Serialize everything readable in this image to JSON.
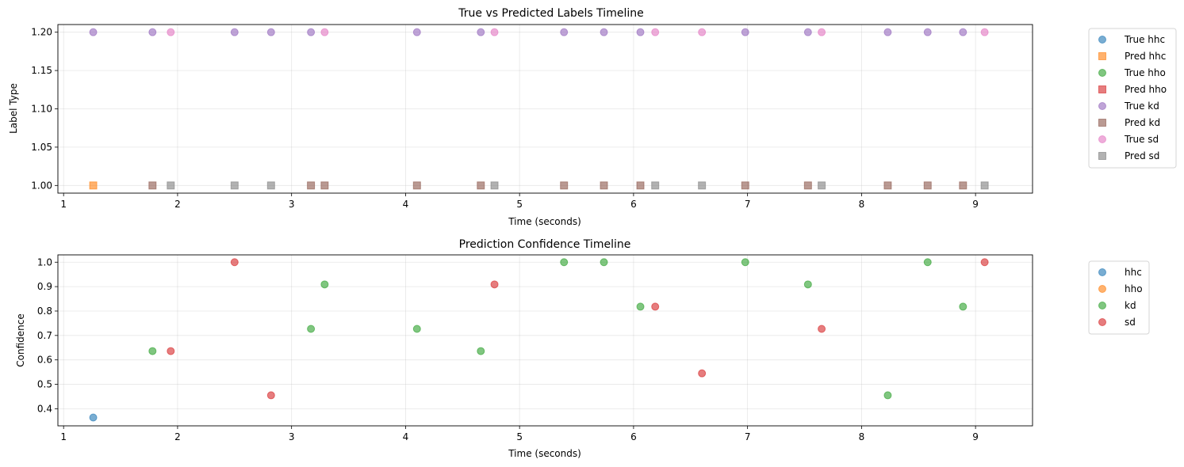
{
  "chart_data": [
    {
      "type": "scatter",
      "title": "True vs Predicted Labels Timeline",
      "xlabel": "Time (seconds)",
      "ylabel": "Label Type",
      "xlim": [
        0.95,
        9.5
      ],
      "ylim": [
        0.99,
        1.21
      ],
      "xticks": [
        1,
        2,
        3,
        4,
        5,
        6,
        7,
        8,
        9
      ],
      "yticks": [
        1.0,
        1.05,
        1.1,
        1.15,
        1.2
      ],
      "ytick_labels": [
        "1.00",
        "1.05",
        "1.10",
        "1.15",
        "1.20"
      ],
      "grid": true,
      "legend_placement": "outside-upper-right",
      "series": [
        {
          "name": "True hhc",
          "marker": "circle",
          "color": "#1f77b4",
          "x": [],
          "y": []
        },
        {
          "name": "Pred hhc",
          "marker": "square",
          "color": "#ff7f0e",
          "x": [
            1.26
          ],
          "y": [
            1.0
          ]
        },
        {
          "name": "True hho",
          "marker": "circle",
          "color": "#2ca02c",
          "x": [],
          "y": []
        },
        {
          "name": "Pred hho",
          "marker": "square",
          "color": "#d62728",
          "x": [],
          "y": []
        },
        {
          "name": "True kd",
          "marker": "circle",
          "color": "#9467bd",
          "x": [
            1.26,
            1.78,
            2.5,
            2.82,
            3.17,
            4.1,
            4.66,
            5.39,
            5.74,
            6.06,
            6.98,
            7.53,
            8.23,
            8.58,
            8.89
          ],
          "y": [
            1.2,
            1.2,
            1.2,
            1.2,
            1.2,
            1.2,
            1.2,
            1.2,
            1.2,
            1.2,
            1.2,
            1.2,
            1.2,
            1.2,
            1.2
          ]
        },
        {
          "name": "Pred kd",
          "marker": "square",
          "color": "#8c564b",
          "x": [
            1.78,
            3.17,
            3.29,
            4.1,
            4.66,
            5.39,
            5.74,
            6.06,
            6.98,
            7.53,
            8.23,
            8.58,
            8.89
          ],
          "y": [
            1.0,
            1.0,
            1.0,
            1.0,
            1.0,
            1.0,
            1.0,
            1.0,
            1.0,
            1.0,
            1.0,
            1.0,
            1.0
          ]
        },
        {
          "name": "True sd",
          "marker": "circle",
          "color": "#e377c2",
          "x": [
            1.94,
            3.29,
            4.78,
            6.19,
            6.6,
            7.65,
            9.08
          ],
          "y": [
            1.2,
            1.2,
            1.2,
            1.2,
            1.2,
            1.2,
            1.2
          ]
        },
        {
          "name": "Pred sd",
          "marker": "square",
          "color": "#7f7f7f",
          "x": [
            1.94,
            2.5,
            2.82,
            4.78,
            6.19,
            6.6,
            7.65,
            9.08
          ],
          "y": [
            1.0,
            1.0,
            1.0,
            1.0,
            1.0,
            1.0,
            1.0,
            1.0
          ]
        }
      ]
    },
    {
      "type": "scatter",
      "title": "Prediction Confidence Timeline",
      "xlabel": "Time (seconds)",
      "ylabel": "Confidence",
      "xlim": [
        0.95,
        9.5
      ],
      "ylim": [
        0.33,
        1.03
      ],
      "xticks": [
        1,
        2,
        3,
        4,
        5,
        6,
        7,
        8,
        9
      ],
      "yticks": [
        0.4,
        0.5,
        0.6,
        0.7,
        0.8,
        0.9,
        1.0
      ],
      "ytick_labels": [
        "0.4",
        "0.5",
        "0.6",
        "0.7",
        "0.8",
        "0.9",
        "1.0"
      ],
      "grid": true,
      "legend_placement": "outside-upper-right",
      "series": [
        {
          "name": "hhc",
          "marker": "circle",
          "color": "#1f77b4",
          "x": [
            1.26
          ],
          "y": [
            0.364
          ]
        },
        {
          "name": "hho",
          "marker": "circle",
          "color": "#ff7f0e",
          "x": [],
          "y": []
        },
        {
          "name": "kd",
          "marker": "circle",
          "color": "#2ca02c",
          "x": [
            1.78,
            3.17,
            3.29,
            4.1,
            4.66,
            5.39,
            5.74,
            6.06,
            6.98,
            7.53,
            8.23,
            8.58,
            8.89
          ],
          "y": [
            0.636,
            0.727,
            0.909,
            0.727,
            0.636,
            1.0,
            1.0,
            0.818,
            1.0,
            0.909,
            0.455,
            1.0,
            0.818
          ]
        },
        {
          "name": "sd",
          "marker": "circle",
          "color": "#d62728",
          "x": [
            1.94,
            2.5,
            2.82,
            4.78,
            6.19,
            6.6,
            7.65,
            9.08
          ],
          "y": [
            0.636,
            1.0,
            0.455,
            0.909,
            0.818,
            0.545,
            0.727,
            1.0
          ]
        }
      ]
    }
  ]
}
